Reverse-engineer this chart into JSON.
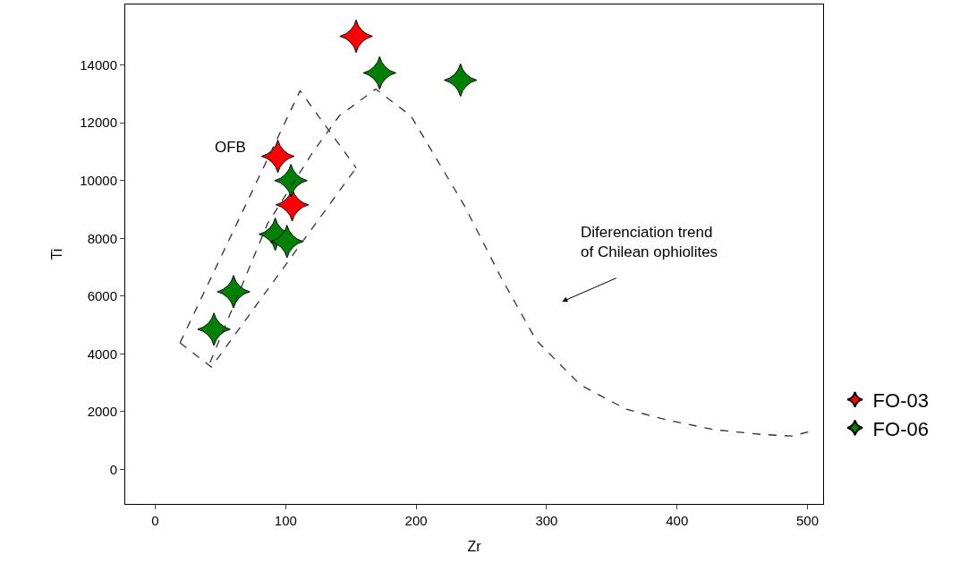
{
  "chart_data": {
    "type": "scatter",
    "xlabel": "Zr",
    "ylabel": "Ti",
    "xlim": [
      -23,
      512
    ],
    "ylim": [
      -1200,
      16100
    ],
    "xticks": [
      0,
      100,
      200,
      300,
      400,
      500
    ],
    "yticks": [
      0,
      2000,
      4000,
      6000,
      8000,
      10000,
      12000,
      14000
    ],
    "legend": "right",
    "marker": "star",
    "series": [
      {
        "name": "FO-03",
        "color": "#ff0000",
        "x": [
          154,
          94,
          105
        ],
        "values": [
          15000,
          10840,
          9160
        ]
      },
      {
        "name": "FO-06",
        "color": "#008000",
        "x": [
          172,
          234,
          104,
          92,
          101,
          60,
          45
        ],
        "values": [
          13730,
          13480,
          10000,
          8140,
          7890,
          6150,
          4850
        ]
      },
      {
        "type": "line",
        "color": "#333333",
        "marker": "none",
        "line_style": "dashed",
        "x": [
          19,
          43,
          154
        ],
        "values": [
          4380,
          3540,
          10440
        ]
      },
      {
        "type": "line",
        "color": "#333333",
        "marker": "none",
        "line_style": "dashed",
        "x": [
          19,
          111,
          154
        ],
        "values": [
          4380,
          13110,
          10440
        ]
      },
      {
        "type": "line",
        "color": "#333333",
        "marker": "none",
        "line_style": "dashed",
        "x": [
          42,
          86,
          121,
          141,
          169,
          196,
          237,
          265,
          292,
          326,
          361,
          395,
          429,
          464,
          488,
          501
        ],
        "values": [
          3700,
          8500,
          11000,
          12240,
          13170,
          12240,
          9130,
          6650,
          4470,
          2920,
          2080,
          1680,
          1370,
          1210,
          1150,
          1300
        ]
      }
    ],
    "annotations": [
      "OFB",
      "Diferenciation trend\nof Chilean ophiolites"
    ]
  }
}
